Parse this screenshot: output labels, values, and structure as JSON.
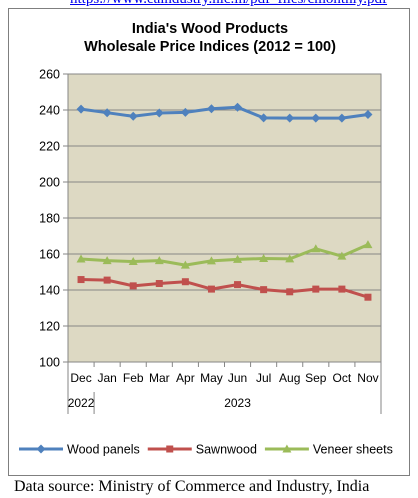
{
  "top_link": {
    "text": "https://www.eaindustry.nic.in/pdf_files/cmonthly.pdf"
  },
  "chart_data": {
    "type": "line",
    "title": [
      "India's Wood Products",
      "Wholesale Price Indices (2012 = 100)"
    ],
    "xlabel": "",
    "ylabel": "",
    "categories": [
      "Dec",
      "Jan",
      "Feb",
      "Mar",
      "Apr",
      "May",
      "Jun",
      "Jul",
      "Aug",
      "Sep",
      "Oct",
      "Nov"
    ],
    "year_labels": [
      {
        "label": "2022",
        "under": "Dec"
      },
      {
        "label": "2023",
        "under": "May-Jun"
      }
    ],
    "ylim": [
      100,
      260
    ],
    "yticks": [
      100,
      120,
      140,
      160,
      180,
      200,
      220,
      240,
      260
    ],
    "grid": true,
    "plot_background": "#ddd9c3",
    "legend_position": "bottom",
    "series": [
      {
        "name": "Wood panels",
        "color": "#4f81bd",
        "marker": "diamond",
        "values": [
          240.5,
          238.5,
          236.5,
          238.3,
          238.7,
          240.7,
          241.5,
          235.6,
          235.5,
          235.5,
          235.5,
          237.5
        ]
      },
      {
        "name": "Sawnwood",
        "color": "#c0504d",
        "marker": "square",
        "values": [
          145.8,
          145.5,
          142.3,
          143.6,
          144.6,
          140.5,
          143.0,
          140.2,
          139.0,
          140.5,
          140.5,
          136.0
        ]
      },
      {
        "name": "Veneer sheets",
        "color": "#9bbb59",
        "marker": "triangle",
        "values": [
          157.2,
          156.3,
          155.8,
          156.3,
          153.8,
          156.2,
          157.0,
          157.5,
          157.3,
          162.9,
          158.8,
          165.2
        ]
      }
    ]
  },
  "source_note": "Data source: Ministry of Commerce and Industry, India"
}
